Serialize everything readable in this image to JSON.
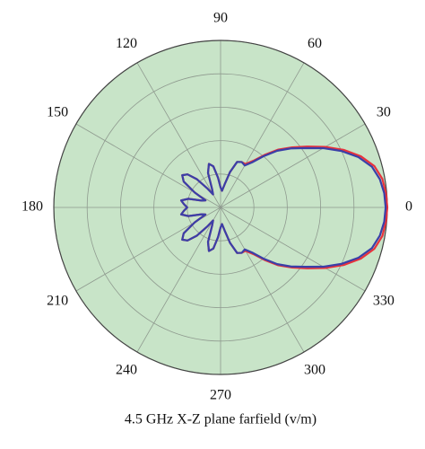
{
  "chart_data": {
    "type": "polar",
    "title": "4.5 GHz X-Z plane farfield (v/m)",
    "theta": [
      0,
      5,
      10,
      15,
      20,
      25,
      30,
      35,
      40,
      45,
      50,
      55,
      60,
      65,
      70,
      75,
      80,
      85,
      90,
      95,
      100,
      105,
      110,
      115,
      120,
      125,
      130,
      135,
      140,
      145,
      150,
      155,
      160,
      165,
      170,
      175,
      180,
      185,
      190,
      195,
      200,
      205,
      210,
      215,
      220,
      225,
      230,
      235,
      240,
      245,
      250,
      255,
      260,
      265,
      270,
      275,
      280,
      285,
      290,
      295,
      300,
      305,
      310,
      315,
      320,
      325,
      330,
      335,
      340,
      345,
      350,
      355
    ],
    "series": [
      {
        "color": "#e8323c",
        "values": [
          1.0,
          0.995,
          0.985,
          0.955,
          0.895,
          0.815,
          0.725,
          0.635,
          0.56,
          0.49,
          0.41,
          0.34,
          0.3,
          0.3,
          0.29,
          0.22,
          0.14,
          0.1,
          0.12,
          0.18,
          0.25,
          0.27,
          0.22,
          0.12,
          0.09,
          0.14,
          0.22,
          0.28,
          0.3,
          0.27,
          0.18,
          0.1,
          0.12,
          0.2,
          0.24,
          0.22,
          0.2,
          0.22,
          0.24,
          0.2,
          0.12,
          0.1,
          0.18,
          0.27,
          0.3,
          0.28,
          0.22,
          0.14,
          0.09,
          0.12,
          0.22,
          0.27,
          0.25,
          0.18,
          0.12,
          0.1,
          0.14,
          0.22,
          0.29,
          0.3,
          0.3,
          0.34,
          0.41,
          0.49,
          0.56,
          0.635,
          0.725,
          0.815,
          0.895,
          0.955,
          0.985,
          0.995
        ]
      },
      {
        "color": "#3a3fa8",
        "values": [
          0.99,
          0.985,
          0.97,
          0.94,
          0.88,
          0.8,
          0.71,
          0.62,
          0.55,
          0.48,
          0.4,
          0.33,
          0.29,
          0.3,
          0.29,
          0.22,
          0.14,
          0.1,
          0.12,
          0.18,
          0.25,
          0.27,
          0.22,
          0.12,
          0.09,
          0.14,
          0.22,
          0.28,
          0.3,
          0.27,
          0.18,
          0.1,
          0.12,
          0.2,
          0.24,
          0.22,
          0.2,
          0.22,
          0.24,
          0.2,
          0.12,
          0.1,
          0.18,
          0.27,
          0.3,
          0.28,
          0.22,
          0.14,
          0.09,
          0.12,
          0.22,
          0.27,
          0.25,
          0.18,
          0.12,
          0.1,
          0.14,
          0.22,
          0.29,
          0.3,
          0.29,
          0.33,
          0.4,
          0.48,
          0.55,
          0.62,
          0.71,
          0.8,
          0.88,
          0.94,
          0.97,
          0.985
        ]
      }
    ],
    "rlim": [
      0,
      1
    ],
    "rticks": [
      0.2,
      0.4,
      0.6,
      0.8,
      1
    ],
    "thetaticks": [
      0,
      30,
      60,
      90,
      120,
      150,
      180,
      210,
      240,
      270,
      300,
      330
    ],
    "background": "#c8e4c8",
    "grid": true
  }
}
